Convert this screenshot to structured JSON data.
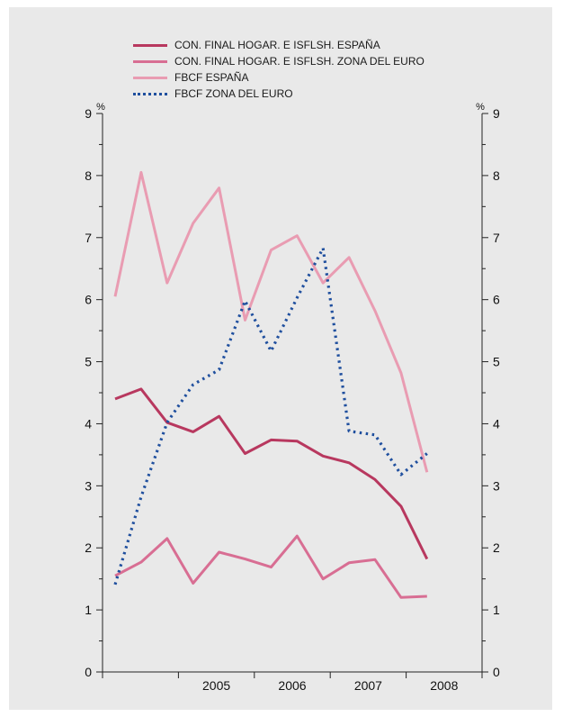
{
  "chart_data": {
    "type": "line",
    "title": "",
    "xlabel": "",
    "ylabel_left": "%",
    "ylabel_right": "%",
    "ylim": [
      0,
      9
    ],
    "y_ticks": [
      "0",
      "1",
      "2",
      "3",
      "4",
      "5",
      "6",
      "7",
      "8",
      "9"
    ],
    "x_tick_labels": [
      "2005",
      "2006",
      "2007",
      "2008"
    ],
    "x_label_range": [
      "2004-Q4",
      "2008-Q4"
    ],
    "x": [
      "2004-Q4",
      "2005-Q1",
      "2005-Q2",
      "2005-Q3",
      "2005-Q4",
      "2006-Q1",
      "2006-Q2",
      "2006-Q3",
      "2006-Q4",
      "2007-Q1",
      "2007-Q2",
      "2007-Q3",
      "2007-Q4"
    ],
    "series": [
      {
        "name": "CON. FINAL HOGAR. E ISFLSH. ESPAÑA",
        "color": "#b8385f",
        "style": "solid",
        "values": [
          4.4,
          4.56,
          4.02,
          3.87,
          4.12,
          3.52,
          3.74,
          3.72,
          3.48,
          3.37,
          3.1,
          2.67,
          1.82
        ]
      },
      {
        "name": "CON. FINAL HOGAR. E ISFLSH. ZONA DEL EURO",
        "color": "#d86e93",
        "style": "solid",
        "values": [
          1.55,
          1.77,
          2.15,
          1.43,
          1.93,
          1.82,
          1.69,
          2.19,
          1.5,
          1.76,
          1.81,
          1.2,
          1.22
        ]
      },
      {
        "name": "FBCF ESPAÑA",
        "color": "#e99cb2",
        "style": "solid",
        "values": [
          6.05,
          8.05,
          6.27,
          7.23,
          7.8,
          5.67,
          6.8,
          7.03,
          6.27,
          6.68,
          5.82,
          4.82,
          3.22
        ]
      },
      {
        "name": "FBCF ZONA DEL EURO",
        "color": "#1f4f9e",
        "style": "dotted",
        "values": [
          1.41,
          2.82,
          4.02,
          4.63,
          4.87,
          5.98,
          5.17,
          6.03,
          6.83,
          3.88,
          3.82,
          3.18,
          3.52
        ]
      }
    ],
    "legend_position": "top"
  }
}
